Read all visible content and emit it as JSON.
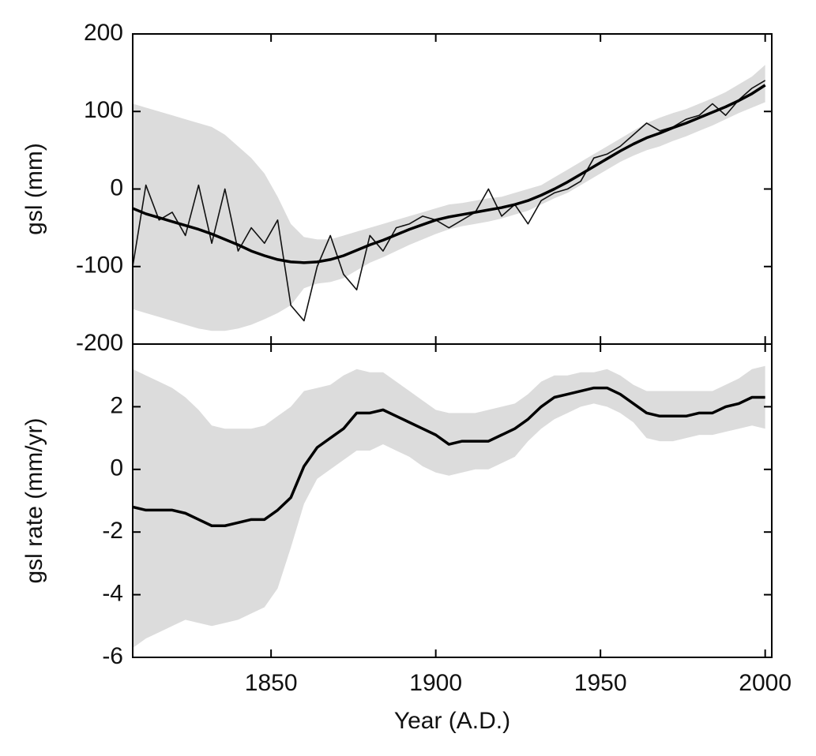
{
  "chart_data": [
    {
      "type": "line",
      "ylabel": "gsl (mm)",
      "xtick_labels": false,
      "x": [
        1808,
        1812,
        1816,
        1820,
        1824,
        1828,
        1832,
        1836,
        1840,
        1844,
        1848,
        1852,
        1856,
        1860,
        1864,
        1868,
        1872,
        1876,
        1880,
        1884,
        1888,
        1892,
        1896,
        1900,
        1904,
        1908,
        1912,
        1916,
        1920,
        1924,
        1928,
        1932,
        1936,
        1940,
        1944,
        1948,
        1952,
        1956,
        1960,
        1964,
        1968,
        1972,
        1976,
        1980,
        1984,
        1988,
        1992,
        1996,
        2000
      ],
      "xlim": [
        1808,
        2002
      ],
      "xticks": [
        1850,
        1900,
        1950,
        2000
      ],
      "ylim": [
        -200,
        200
      ],
      "yticks": [
        -200,
        -100,
        0,
        100,
        200
      ],
      "band": {
        "color": "#dcdcdc",
        "upper": [
          110,
          105,
          100,
          95,
          90,
          85,
          80,
          70,
          55,
          40,
          20,
          -10,
          -45,
          -62,
          -65,
          -65,
          -60,
          -55,
          -50,
          -45,
          -40,
          -35,
          -30,
          -25,
          -20,
          -18,
          -15,
          -12,
          -10,
          -5,
          0,
          5,
          15,
          25,
          35,
          45,
          55,
          65,
          75,
          85,
          92,
          98,
          103,
          110,
          117,
          125,
          135,
          145,
          160
        ],
        "lower": [
          -155,
          -160,
          -165,
          -170,
          -175,
          -180,
          -183,
          -183,
          -180,
          -175,
          -168,
          -160,
          -150,
          -128,
          -122,
          -120,
          -115,
          -105,
          -95,
          -88,
          -80,
          -72,
          -65,
          -58,
          -52,
          -48,
          -45,
          -42,
          -38,
          -33,
          -28,
          -20,
          -12,
          -5,
          5,
          15,
          25,
          35,
          43,
          50,
          55,
          62,
          68,
          75,
          82,
          90,
          98,
          105,
          112
        ]
      },
      "series": [
        {
          "color": "#111111",
          "linewidth": 1.6,
          "values": [
            -100,
            5,
            -40,
            -30,
            -60,
            5,
            -70,
            0,
            -80,
            -50,
            -70,
            -40,
            -150,
            -170,
            -100,
            -60,
            -110,
            -130,
            -60,
            -80,
            -50,
            -45,
            -35,
            -40,
            -50,
            -40,
            -30,
            0,
            -35,
            -20,
            -45,
            -15,
            -5,
            0,
            10,
            40,
            45,
            55,
            70,
            85,
            75,
            80,
            90,
            95,
            110,
            95,
            115,
            130,
            140
          ]
        },
        {
          "color": "#000000",
          "linewidth": 3.5,
          "values": [
            -25,
            -32,
            -37,
            -42,
            -47,
            -52,
            -58,
            -65,
            -72,
            -80,
            -86,
            -91,
            -94,
            -95,
            -94,
            -91,
            -86,
            -79,
            -72,
            -66,
            -59,
            -52,
            -46,
            -40,
            -36,
            -33,
            -30,
            -27,
            -24,
            -20,
            -15,
            -8,
            0,
            9,
            19,
            29,
            39,
            49,
            58,
            66,
            72,
            79,
            85,
            92,
            99,
            106,
            114,
            123,
            134
          ]
        }
      ]
    },
    {
      "type": "line",
      "ylabel": "gsl rate (mm/yr)",
      "xlabel": "Year (A.D.)",
      "xtick_labels": true,
      "x": [
        1808,
        1812,
        1816,
        1820,
        1824,
        1828,
        1832,
        1836,
        1840,
        1844,
        1848,
        1852,
        1856,
        1860,
        1864,
        1868,
        1872,
        1876,
        1880,
        1884,
        1888,
        1892,
        1896,
        1900,
        1904,
        1908,
        1912,
        1916,
        1920,
        1924,
        1928,
        1932,
        1936,
        1940,
        1944,
        1948,
        1952,
        1956,
        1960,
        1964,
        1968,
        1972,
        1976,
        1980,
        1984,
        1988,
        1992,
        1996,
        2000
      ],
      "xlim": [
        1808,
        2002
      ],
      "xticks": [
        1850,
        1900,
        1950,
        2000
      ],
      "ylim": [
        -6,
        4
      ],
      "yticks": [
        -6,
        -4,
        -2,
        0,
        2
      ],
      "band": {
        "color": "#dcdcdc",
        "upper": [
          3.2,
          3.0,
          2.8,
          2.6,
          2.3,
          1.9,
          1.4,
          1.3,
          1.3,
          1.3,
          1.4,
          1.7,
          2.0,
          2.5,
          2.6,
          2.7,
          3.0,
          3.2,
          3.1,
          3.1,
          2.8,
          2.5,
          2.2,
          1.9,
          1.8,
          1.8,
          1.8,
          1.9,
          2.0,
          2.1,
          2.4,
          2.8,
          3.0,
          3.0,
          3.1,
          3.1,
          3.2,
          3.0,
          2.7,
          2.5,
          2.5,
          2.5,
          2.5,
          2.5,
          2.5,
          2.7,
          2.9,
          3.2,
          3.3
        ],
        "lower": [
          -5.7,
          -5.4,
          -5.2,
          -5.0,
          -4.8,
          -4.9,
          -5.0,
          -4.9,
          -4.8,
          -4.6,
          -4.4,
          -3.8,
          -2.5,
          -1.1,
          -0.3,
          0.0,
          0.3,
          0.6,
          0.6,
          0.8,
          0.6,
          0.4,
          0.1,
          -0.1,
          -0.2,
          -0.1,
          0.0,
          0.0,
          0.2,
          0.4,
          0.9,
          1.3,
          1.6,
          1.8,
          2.0,
          2.1,
          2.0,
          1.8,
          1.5,
          1.0,
          0.9,
          0.9,
          1.0,
          1.1,
          1.1,
          1.2,
          1.3,
          1.4,
          1.3
        ]
      },
      "series": [
        {
          "color": "#000000",
          "linewidth": 3.5,
          "values": [
            -1.2,
            -1.3,
            -1.3,
            -1.3,
            -1.4,
            -1.6,
            -1.8,
            -1.8,
            -1.7,
            -1.6,
            -1.6,
            -1.3,
            -0.9,
            0.1,
            0.7,
            1.0,
            1.3,
            1.8,
            1.8,
            1.9,
            1.7,
            1.5,
            1.3,
            1.1,
            0.8,
            0.9,
            0.9,
            0.9,
            1.1,
            1.3,
            1.6,
            2.0,
            2.3,
            2.4,
            2.5,
            2.6,
            2.6,
            2.4,
            2.1,
            1.8,
            1.7,
            1.7,
            1.7,
            1.8,
            1.8,
            2.0,
            2.1,
            2.3,
            2.3
          ]
        }
      ]
    }
  ]
}
